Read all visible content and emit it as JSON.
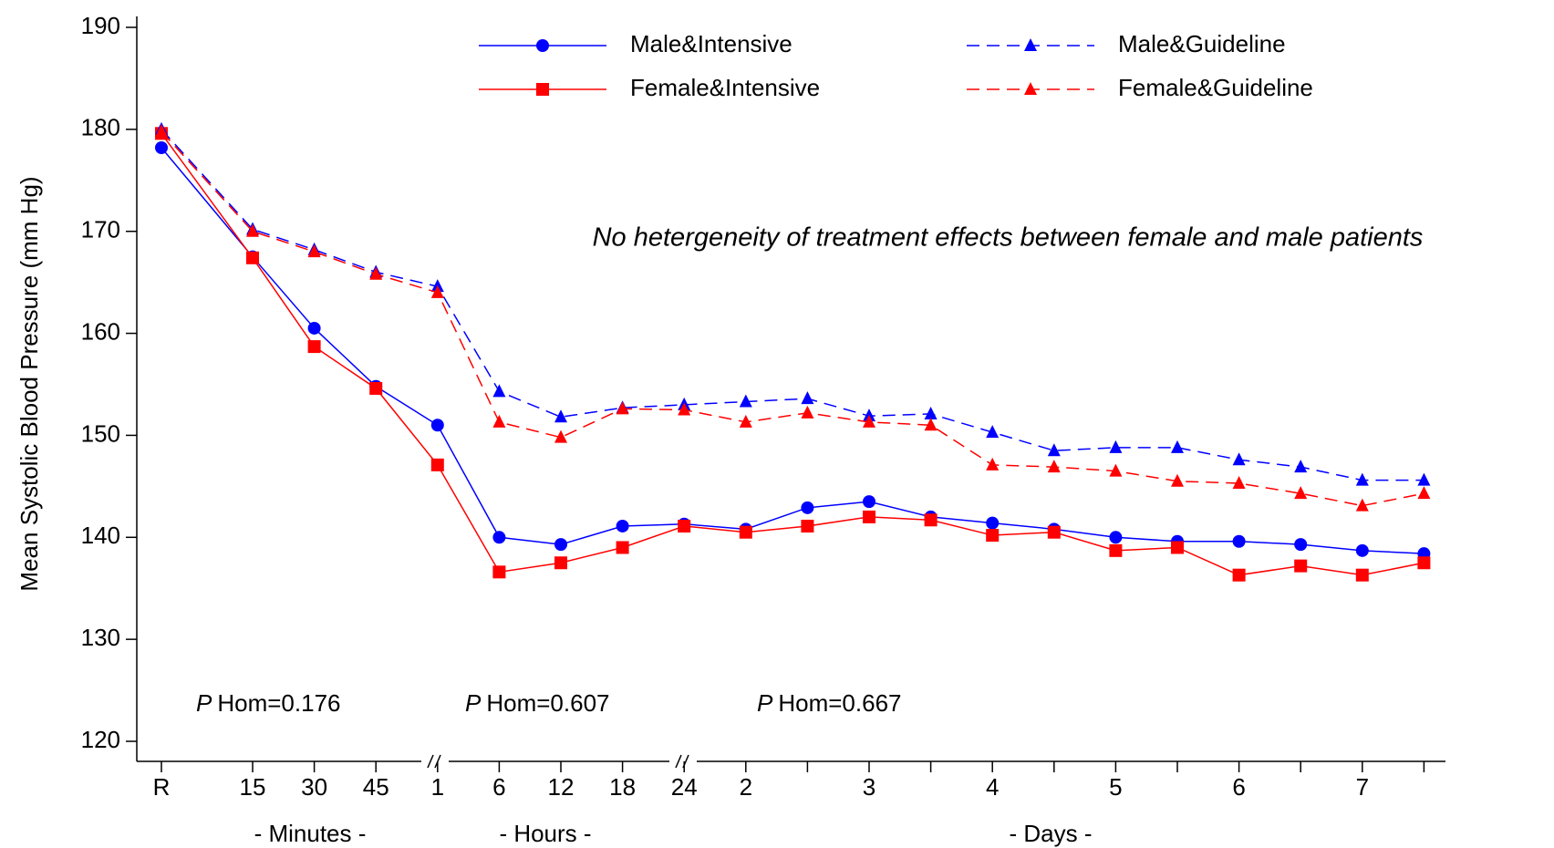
{
  "chart_data": {
    "type": "line",
    "y_label": "Mean Systolic Blood Pressure (mm Hg)",
    "categories": [
      "R",
      "15",
      "30",
      "45",
      "1",
      "6",
      "12",
      "18",
      "24",
      "2",
      null,
      "3",
      null,
      "4",
      null,
      "5",
      null,
      "6",
      null,
      "7",
      null
    ],
    "x_group_labels": [
      "- Minutes -",
      "- Hours -",
      "- Days -"
    ],
    "ylim": [
      120,
      190
    ],
    "yticks": [
      120,
      130,
      140,
      150,
      160,
      170,
      180,
      190
    ],
    "series": [
      {
        "name": "Male&Intensive",
        "color": "#0000ff",
        "linestyle": "solid",
        "marker": "circle",
        "values": [
          178.2,
          167.5,
          160.5,
          154.8,
          151.0,
          140.0,
          139.3,
          141.1,
          141.3,
          140.8,
          142.9,
          143.5,
          142.0,
          141.4,
          140.8,
          140.0,
          139.6,
          139.6,
          139.3,
          138.7,
          138.4
        ]
      },
      {
        "name": "Female&Intensive",
        "color": "#ff0000",
        "linestyle": "solid",
        "marker": "square",
        "values": [
          179.6,
          167.4,
          158.7,
          154.6,
          147.1,
          136.6,
          137.5,
          139.0,
          141.1,
          140.5,
          141.1,
          142.0,
          141.7,
          140.2,
          140.5,
          138.7,
          139.0,
          136.3,
          137.2,
          136.3,
          137.5
        ]
      },
      {
        "name": "Male&Guideline",
        "color": "#0000ff",
        "linestyle": "dashed",
        "marker": "triangle",
        "values": [
          180.0,
          170.2,
          168.2,
          166.0,
          164.6,
          154.3,
          151.8,
          152.7,
          153.0,
          153.3,
          153.6,
          151.9,
          152.1,
          150.3,
          148.5,
          148.8,
          148.8,
          147.6,
          146.9,
          145.6,
          145.6
        ]
      },
      {
        "name": "Female&Guideline",
        "color": "#ff0000",
        "linestyle": "dashed",
        "marker": "triangle",
        "values": [
          179.8,
          170.0,
          168.0,
          165.8,
          164.0,
          151.3,
          149.8,
          152.6,
          152.5,
          151.3,
          152.2,
          151.3,
          151.0,
          147.1,
          146.9,
          146.5,
          145.5,
          145.3,
          144.3,
          143.1,
          144.3
        ]
      }
    ],
    "annotation": "No hetergeneity of treatment effects between female and male patients",
    "p_values": [
      {
        "italic": "P",
        "text": "Hom=0.176"
      },
      {
        "italic": "P",
        "text": "Hom=0.607"
      },
      {
        "italic": "P",
        "text": "Hom=0.667"
      }
    ]
  }
}
